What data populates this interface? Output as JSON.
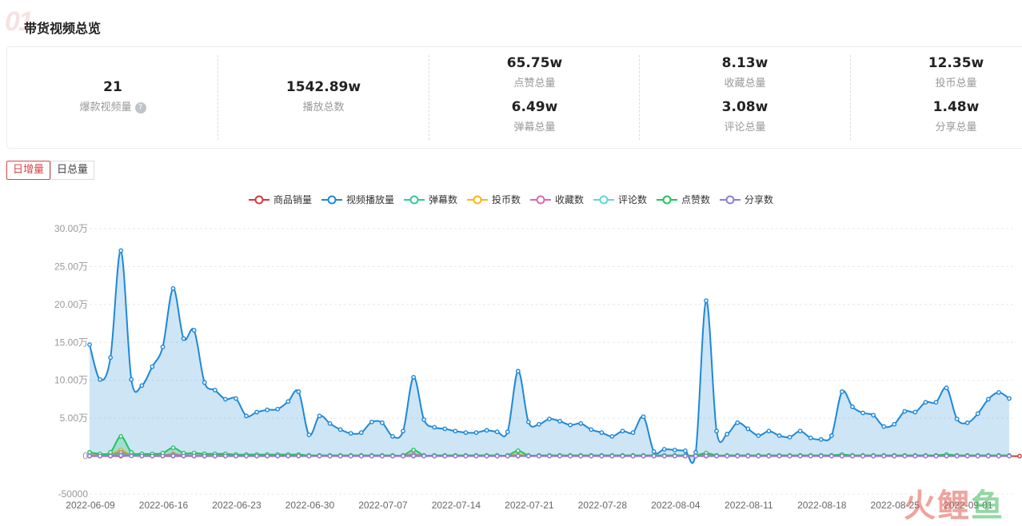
{
  "header": {
    "deco": "01",
    "title": "带货视频总览"
  },
  "stats": {
    "explosive": {
      "value": "21",
      "label": "爆款视频量"
    },
    "plays": {
      "value": "1542.89w",
      "label": "播放总数"
    },
    "likes": {
      "value": "65.75w",
      "label": "点赞总量"
    },
    "danmu": {
      "value": "6.49w",
      "label": "弹幕总量"
    },
    "favorites": {
      "value": "8.13w",
      "label": "收藏总量"
    },
    "comments": {
      "value": "3.08w",
      "label": "评论总量"
    },
    "coins": {
      "value": "12.35w",
      "label": "投币总量"
    },
    "shares": {
      "value": "1.48w",
      "label": "分享总量"
    },
    "help_glyph": "?"
  },
  "tabs": [
    {
      "label": "日增量",
      "active": true
    },
    {
      "label": "日总量",
      "active": false
    }
  ],
  "watermark": {
    "a": "火",
    "b": "鲤",
    "c": "鱼"
  },
  "chart_data": {
    "type": "area",
    "y_ticks": [
      "30.00万",
      "25.00万",
      "20.00万",
      "15.00万",
      "10.00万",
      "5.00万",
      "0",
      "-50000"
    ],
    "ylim": [
      -50000,
      300000
    ],
    "grid": true,
    "legend_position": "top-center",
    "x_tick_labels": [
      "2022-06-09",
      "2022-06-16",
      "2022-06-23",
      "2022-06-30",
      "2022-07-07",
      "2022-07-14",
      "2022-07-21",
      "2022-07-28",
      "2022-08-04",
      "2022-08-11",
      "2022-08-18",
      "2022-08-25",
      "2022-09-01"
    ],
    "start_date": "2022-06-09",
    "series": [
      {
        "name": "商品销量",
        "color": "#d43a3a",
        "values": [
          0,
          0,
          0,
          0,
          500,
          0,
          0,
          0,
          0,
          0,
          0,
          0,
          0,
          0,
          0,
          0,
          0,
          0,
          0,
          0,
          0,
          0,
          0,
          0,
          0,
          0,
          0,
          0,
          0,
          0,
          0,
          0,
          0,
          0,
          0,
          0,
          0,
          0,
          0,
          0,
          0,
          0,
          0,
          0,
          0,
          0,
          0,
          0,
          0,
          0,
          0,
          0,
          0,
          0,
          0,
          0,
          0,
          0,
          0,
          0,
          0,
          0,
          0,
          0,
          0,
          0,
          0,
          0,
          0,
          0,
          0,
          0,
          0,
          0,
          0,
          0,
          0,
          0,
          0,
          0,
          0,
          0,
          0,
          0,
          0,
          0,
          0,
          0,
          0,
          0
        ]
      },
      {
        "name": "视频播放量",
        "color": "#1e88d8",
        "values": [
          147000,
          101000,
          130000,
          271000,
          101000,
          93000,
          118000,
          144000,
          221000,
          155000,
          166000,
          97000,
          87000,
          75000,
          76000,
          53000,
          58000,
          61000,
          62000,
          72000,
          85000,
          28000,
          53000,
          43000,
          35000,
          30000,
          31000,
          45000,
          44000,
          26000,
          33000,
          104000,
          48000,
          38000,
          36000,
          33000,
          31000,
          31000,
          34000,
          32000,
          32000,
          112000,
          45000,
          42000,
          49000,
          46000,
          41000,
          43000,
          35000,
          31000,
          26000,
          33000,
          31000,
          52000,
          6000,
          9000,
          8000,
          7000,
          5000,
          205000,
          33000,
          29000,
          44000,
          36000,
          27000,
          33000,
          27000,
          25000,
          33000,
          24000,
          22000,
          27000,
          85000,
          65000,
          57000,
          54000,
          39000,
          42000,
          59000,
          58000,
          71000,
          71000,
          90000,
          49000,
          44000,
          56000,
          75000,
          84000,
          76000
        ]
      },
      {
        "name": "弹幕数",
        "color": "#36c7a0",
        "values": [
          1000,
          1000,
          2000,
          3000,
          1000,
          1000,
          1000,
          1000,
          1500,
          1000,
          1000,
          1000,
          1000,
          1000,
          1000,
          1000,
          1000,
          1000,
          1000,
          1000,
          1000,
          500,
          500,
          500,
          500,
          500,
          500,
          500,
          500,
          500,
          500,
          1000,
          500,
          500,
          500,
          500,
          500,
          500,
          500,
          500,
          500,
          1000,
          500,
          500,
          500,
          500,
          500,
          500,
          500,
          500,
          500,
          500,
          500,
          500,
          500,
          500,
          500,
          500,
          500,
          2000,
          500,
          500,
          500,
          500,
          500,
          500,
          500,
          500,
          500,
          500,
          500,
          500,
          1000,
          500,
          500,
          500,
          500,
          500,
          500,
          500,
          500,
          500,
          1000,
          500,
          500,
          500,
          500,
          500,
          500
        ]
      },
      {
        "name": "投币数",
        "color": "#f5b81b",
        "values": [
          2000,
          1000,
          2000,
          8000,
          1000,
          1000,
          1000,
          1000,
          3000,
          1000,
          1000,
          1000,
          1000,
          1000,
          1000,
          1000,
          1000,
          1000,
          1000,
          1000,
          1000,
          500,
          500,
          500,
          500,
          500,
          500,
          500,
          500,
          500,
          500,
          2000,
          500,
          500,
          500,
          500,
          500,
          500,
          500,
          500,
          500,
          2000,
          500,
          500,
          500,
          500,
          500,
          500,
          500,
          500,
          500,
          500,
          500,
          500,
          500,
          500,
          500,
          500,
          500,
          2000,
          500,
          500,
          500,
          500,
          500,
          500,
          500,
          500,
          500,
          500,
          500,
          500,
          1000,
          500,
          500,
          500,
          500,
          500,
          500,
          500,
          500,
          500,
          1000,
          500,
          500,
          500,
          500,
          500,
          500
        ]
      },
      {
        "name": "收藏数",
        "color": "#e066b2",
        "values": [
          1000,
          1000,
          1000,
          5000,
          1000,
          1000,
          1000,
          1000,
          2000,
          1000,
          1000,
          1000,
          1000,
          1000,
          1000,
          1000,
          1000,
          1000,
          1000,
          1000,
          1000,
          500,
          500,
          500,
          500,
          500,
          500,
          500,
          500,
          500,
          500,
          2000,
          500,
          500,
          500,
          500,
          500,
          500,
          500,
          500,
          500,
          1000,
          500,
          500,
          500,
          500,
          500,
          500,
          500,
          500,
          500,
          500,
          500,
          500,
          500,
          500,
          500,
          500,
          500,
          1000,
          500,
          500,
          500,
          500,
          500,
          500,
          500,
          500,
          500,
          500,
          500,
          500,
          1000,
          500,
          500,
          500,
          500,
          500,
          500,
          500,
          500,
          500,
          1000,
          500,
          500,
          500,
          500,
          500,
          500
        ]
      },
      {
        "name": "评论数",
        "color": "#5fd6d6",
        "values": [
          500,
          500,
          500,
          1500,
          500,
          500,
          500,
          500,
          800,
          500,
          500,
          500,
          500,
          500,
          500,
          500,
          500,
          500,
          500,
          500,
          500,
          300,
          300,
          300,
          300,
          300,
          300,
          300,
          300,
          300,
          300,
          500,
          300,
          300,
          300,
          300,
          300,
          300,
          300,
          300,
          300,
          500,
          300,
          300,
          300,
          300,
          300,
          300,
          300,
          300,
          300,
          300,
          300,
          300,
          300,
          300,
          300,
          300,
          300,
          500,
          300,
          300,
          300,
          300,
          300,
          300,
          300,
          300,
          300,
          300,
          300,
          300,
          500,
          300,
          300,
          300,
          300,
          300,
          300,
          300,
          300,
          300,
          500,
          300,
          300,
          300,
          300,
          300,
          300
        ]
      },
      {
        "name": "点赞数",
        "color": "#22c35e",
        "values": [
          5000,
          3000,
          5000,
          26000,
          5000,
          3000,
          3000,
          4000,
          11000,
          4000,
          4000,
          3000,
          3000,
          3000,
          2000,
          2000,
          2000,
          2000,
          2000,
          2000,
          2000,
          1000,
          1000,
          1000,
          1000,
          1000,
          1000,
          1000,
          1000,
          1000,
          1000,
          8000,
          1000,
          1000,
          1000,
          1000,
          1000,
          1000,
          1000,
          1000,
          1000,
          7000,
          1000,
          1000,
          1000,
          1000,
          1000,
          1000,
          1000,
          1000,
          1000,
          1000,
          1000,
          1000,
          1000,
          1000,
          1000,
          1000,
          1000,
          4000,
          1000,
          1000,
          1000,
          1000,
          1000,
          1000,
          1000,
          1000,
          1000,
          1000,
          1000,
          1000,
          2000,
          1000,
          1000,
          1000,
          1000,
          1000,
          1000,
          1000,
          1000,
          1000,
          2000,
          1000,
          1000,
          1000,
          1000,
          1000,
          1000
        ]
      },
      {
        "name": "分享数",
        "color": "#8b7ed6",
        "values": [
          200,
          200,
          200,
          800,
          200,
          200,
          200,
          200,
          400,
          200,
          200,
          200,
          200,
          200,
          200,
          200,
          200,
          200,
          200,
          200,
          200,
          100,
          100,
          100,
          100,
          100,
          100,
          100,
          100,
          100,
          100,
          300,
          100,
          100,
          100,
          100,
          100,
          100,
          100,
          100,
          100,
          300,
          100,
          100,
          100,
          100,
          100,
          100,
          100,
          100,
          100,
          100,
          100,
          100,
          100,
          100,
          100,
          100,
          100,
          400,
          100,
          100,
          100,
          100,
          100,
          100,
          100,
          100,
          100,
          100,
          100,
          100,
          200,
          100,
          100,
          100,
          100,
          100,
          100,
          100,
          100,
          100,
          200,
          100,
          100,
          100,
          100,
          100,
          100
        ]
      }
    ]
  }
}
